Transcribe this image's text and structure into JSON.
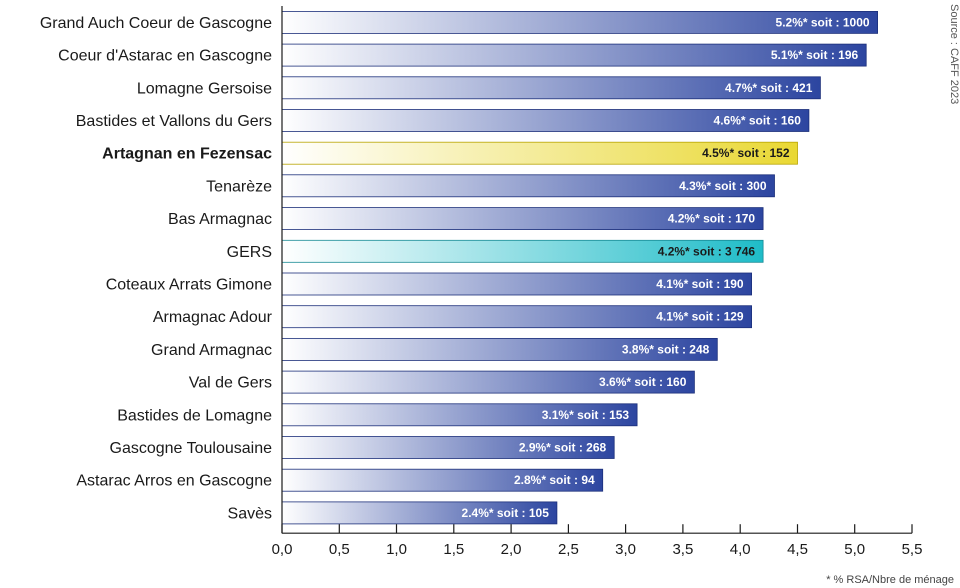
{
  "colors": {
    "bar_start": "#ffffff",
    "bar_end": "#2c45a0",
    "highlight_start": "#ffffff",
    "highlight_end": "#e9d833",
    "total_start": "#ffffff",
    "total_end": "#1fbcc8",
    "label_light": "#ffffff",
    "label_dark": "#1a1a1a"
  },
  "chart_data": {
    "type": "bar",
    "orientation": "horizontal",
    "xlim": [
      0,
      5.5
    ],
    "x_ticks": [
      0.0,
      0.5,
      1.0,
      1.5,
      2.0,
      2.5,
      3.0,
      3.5,
      4.0,
      4.5,
      5.0,
      5.5
    ],
    "x_tick_labels": [
      "0,0",
      "0,5",
      "1,0",
      "1,5",
      "2,0",
      "2,5",
      "3,0",
      "3,5",
      "4,0",
      "4,5",
      "5,0",
      "5,5"
    ],
    "grid": false,
    "categories": [
      "Grand Auch Coeur de Gascogne",
      "Coeur d'Astarac en Gascogne",
      "Lomagne Gersoise",
      "Bastides et Vallons du Gers",
      "Artagnan en Fezensac",
      "Tenarèze",
      "Bas Armagnac",
      "GERS",
      "Coteaux Arrats Gimone",
      "Armagnac Adour",
      "Grand Armagnac",
      "Val de Gers",
      "Bastides de Lomagne",
      "Gascogne Toulousaine",
      "Astarac Arros en Gascogne",
      "Savès"
    ],
    "values": [
      5.2,
      5.1,
      4.7,
      4.6,
      4.5,
      4.3,
      4.2,
      4.2,
      4.1,
      4.1,
      3.8,
      3.6,
      3.1,
      2.9,
      2.8,
      2.4
    ],
    "data_labels": [
      "5.2%* soit : 1000",
      "5.1%* soit : 196",
      "4.7%* soit : 421",
      "4.6%* soit : 160",
      "4.5%* soit : 152",
      "4.3%* soit : 300",
      "4.2%* soit : 170",
      "4.2%*  soit : 3 746",
      "4.1%* soit : 190",
      "4.1%* soit : 129",
      "3.8%* soit : 248",
      "3.6%* soit : 160",
      "3.1%* soit : 153",
      "2.9%* soit : 268",
      "2.8%* soit : 94",
      "2.4%* soit : 105"
    ],
    "highlight": "Artagnan en Fezensac",
    "total": "GERS",
    "source": "Source : CAFF 2023",
    "footnote": "* % RSA/Nbre de ménage"
  }
}
